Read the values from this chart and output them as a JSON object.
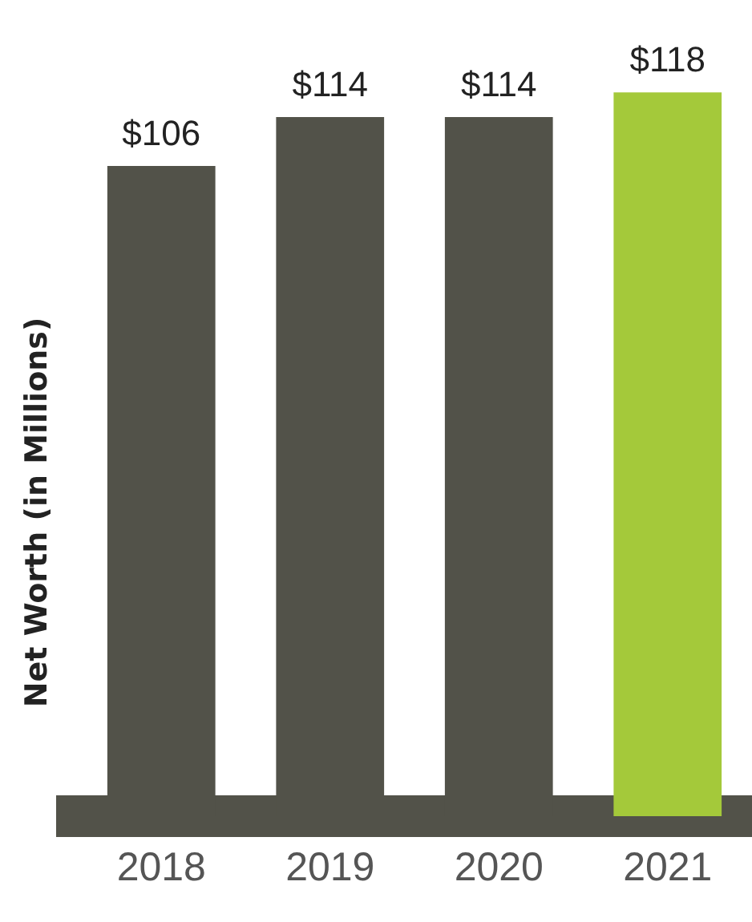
{
  "chart_data": {
    "type": "bar",
    "ylabel": "Net Worth (in Millions)",
    "categories": [
      "2018",
      "2019",
      "2020",
      "2021"
    ],
    "values": [
      106,
      114,
      114,
      118
    ],
    "colors": [
      "#525249",
      "#525249",
      "#525249",
      "#a4c93a"
    ],
    "value_labels": [
      "$106",
      "$114",
      "$114",
      "$118"
    ],
    "grid": false,
    "legend": false
  }
}
